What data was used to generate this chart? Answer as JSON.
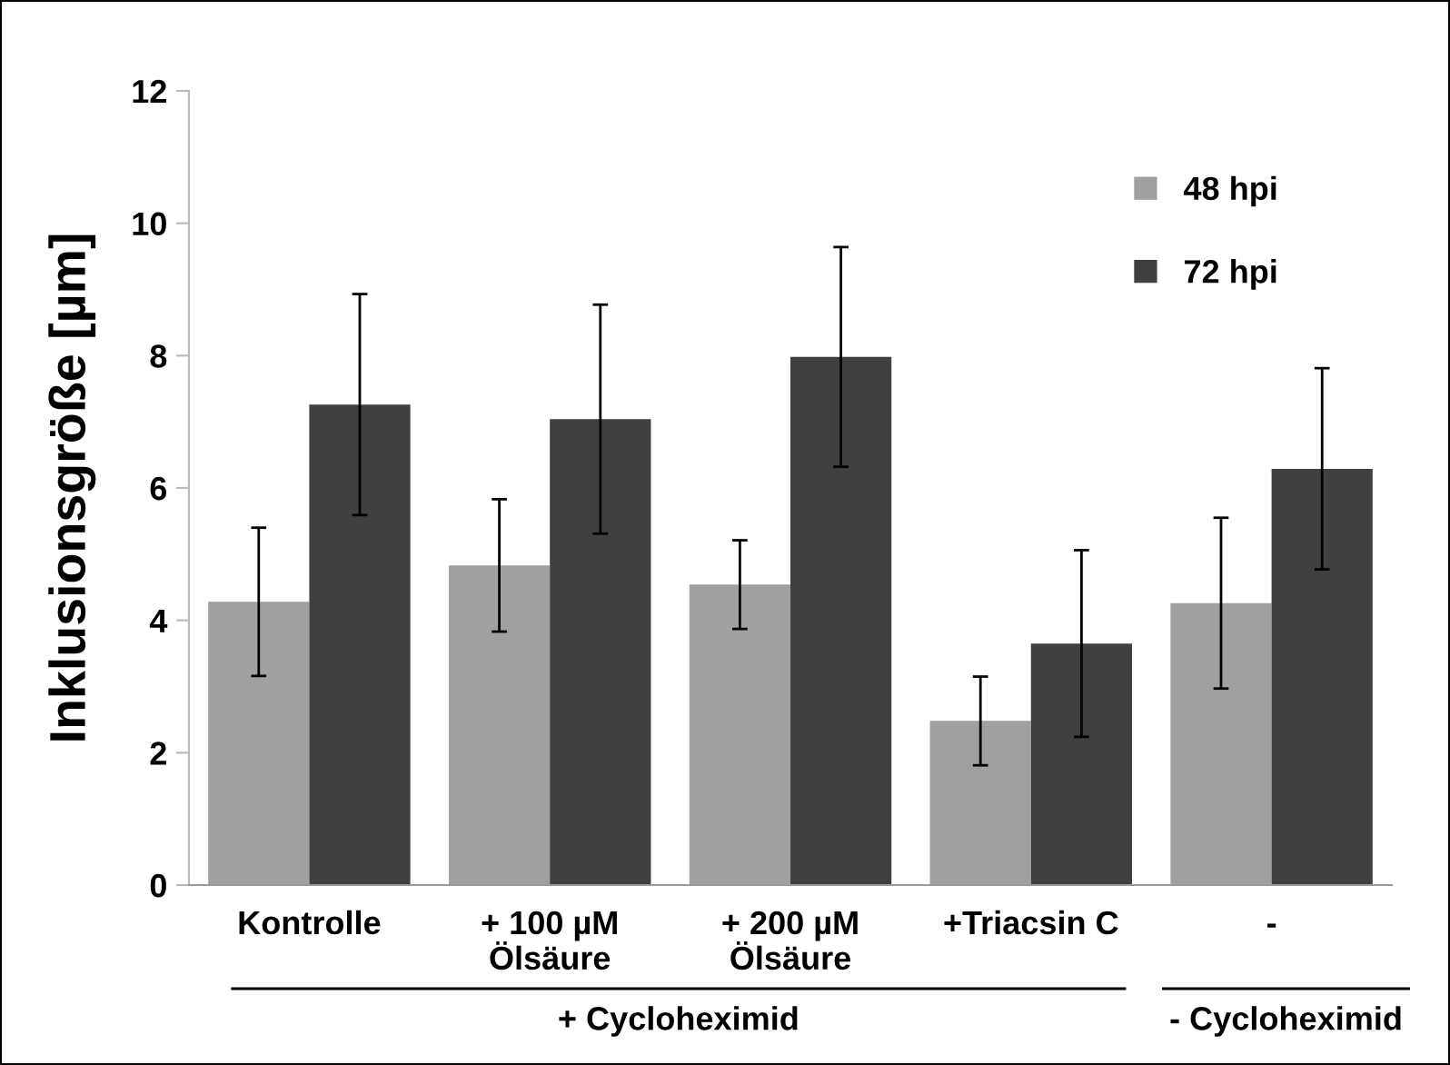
{
  "chart_data": {
    "type": "bar",
    "ylabel": "Inklusionsgröße [µm]",
    "categories": [
      "Kontrolle",
      "+ 100 µM\nÖlsäure",
      "+ 200 µM\nÖlsäure",
      "+Triacsin C",
      "-"
    ],
    "series": [
      {
        "name": "48 hpi",
        "color": "#a0a0a0",
        "values": [
          4.28,
          4.83,
          4.54,
          2.48,
          4.26
        ],
        "errors": [
          1.12,
          1.0,
          0.67,
          0.67,
          1.29
        ]
      },
      {
        "name": "72 hpi",
        "color": "#404040",
        "values": [
          7.26,
          7.04,
          7.98,
          3.65,
          6.29
        ],
        "errors": [
          1.67,
          1.73,
          1.66,
          1.41,
          1.52
        ]
      }
    ],
    "ylim": [
      0,
      12
    ],
    "yticks": [
      0,
      2,
      4,
      6,
      8,
      10,
      12
    ],
    "grid": false,
    "legend": "top right",
    "annotations": [
      "+ Cycloheximid",
      "- Cycloheximid"
    ]
  }
}
